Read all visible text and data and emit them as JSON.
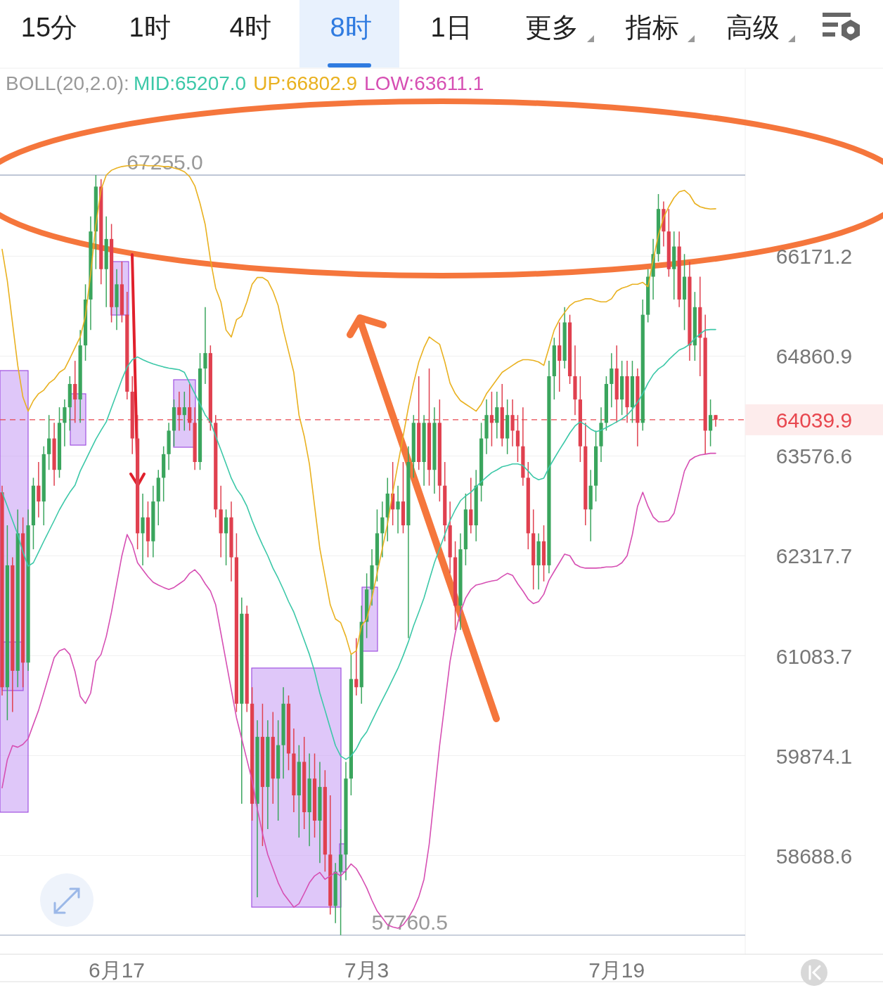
{
  "chart_data": {
    "type": "candlestick",
    "categories": [
      null,
      null,
      null,
      null,
      null,
      null,
      null,
      null,
      null,
      null,
      null,
      null,
      null,
      null,
      null,
      null,
      null,
      null,
      null,
      null,
      null,
      null,
      "6月17",
      null,
      null,
      null,
      null,
      null,
      null,
      null,
      null,
      null,
      null,
      null,
      null,
      null,
      null,
      null,
      null,
      null,
      null,
      null,
      null,
      null,
      null,
      null,
      null,
      null,
      null,
      null,
      null,
      null,
      null,
      null,
      null,
      null,
      null,
      null,
      null,
      null,
      null,
      null,
      null,
      null,
      null,
      null,
      null,
      null,
      null,
      null,
      "7月3",
      null,
      null,
      null,
      null,
      null,
      null,
      null,
      null,
      null,
      null,
      null,
      null,
      null,
      null,
      null,
      null,
      null,
      null,
      null,
      null,
      null,
      null,
      null,
      null,
      null,
      null,
      null,
      null,
      null,
      null,
      null,
      null,
      null,
      null,
      null,
      null,
      null,
      null,
      null,
      null,
      null,
      null,
      null,
      null,
      null,
      null,
      null,
      "7月19",
      null,
      null,
      null,
      null,
      null,
      null,
      null,
      null,
      null,
      null,
      null,
      null,
      null,
      null,
      null,
      null,
      null,
      null,
      null
    ],
    "ohlc": [
      [
        63116,
        63200,
        60600,
        60700
      ],
      [
        60700,
        62700,
        60300,
        62200
      ],
      [
        62200,
        62300,
        60400,
        60900
      ],
      [
        60900,
        62900,
        60700,
        62600
      ],
      [
        62600,
        62800,
        60700,
        61000
      ],
      [
        61000,
        62900,
        60900,
        62700
      ],
      [
        62700,
        63300,
        62400,
        63200
      ],
      [
        63200,
        63500,
        62800,
        63000
      ],
      [
        63000,
        63700,
        62700,
        63600
      ],
      [
        63600,
        64100,
        63400,
        63800
      ],
      [
        63800,
        64000,
        63200,
        63400
      ],
      [
        63400,
        64200,
        63300,
        64000
      ],
      [
        64000,
        64300,
        63700,
        64200
      ],
      [
        64200,
        64600,
        63900,
        64500
      ],
      [
        64500,
        64800,
        64000,
        64300
      ],
      [
        64300,
        65200,
        64000,
        65000
      ],
      [
        65000,
        65800,
        64800,
        65600
      ],
      [
        65600,
        66700,
        65200,
        66500
      ],
      [
        66500,
        67255,
        66000,
        67100
      ],
      [
        67100,
        67200,
        65800,
        66000
      ],
      [
        66000,
        66700,
        65500,
        66400
      ],
      [
        66400,
        66600,
        65300,
        65500
      ],
      [
        65500,
        66000,
        65200,
        65800
      ],
      [
        65800,
        66100,
        65300,
        65400
      ],
      [
        65400,
        65700,
        64300,
        64400
      ],
      [
        64400,
        64600,
        63600,
        63800
      ],
      [
        63800,
        64100,
        62400,
        62600
      ],
      [
        62600,
        63100,
        62200,
        62800
      ],
      [
        62800,
        63000,
        62300,
        62500
      ],
      [
        62500,
        63200,
        62300,
        63000
      ],
      [
        63000,
        63400,
        62700,
        63300
      ],
      [
        63300,
        63700,
        63000,
        63600
      ],
      [
        63600,
        64000,
        63400,
        63900
      ],
      [
        63900,
        64300,
        63700,
        64200
      ],
      [
        64200,
        64400,
        63900,
        64100
      ],
      [
        64100,
        64400,
        63900,
        64200
      ],
      [
        64200,
        64500,
        63900,
        64000
      ],
      [
        64000,
        64200,
        63400,
        63500
      ],
      [
        63500,
        64900,
        63400,
        64700
      ],
      [
        64700,
        65500,
        64500,
        64900
      ],
      [
        64900,
        65000,
        63900,
        64000
      ],
      [
        64000,
        64100,
        62800,
        62900
      ],
      [
        62900,
        63200,
        62300,
        62600
      ],
      [
        62600,
        62900,
        62200,
        62800
      ],
      [
        62800,
        63000,
        62000,
        62300
      ],
      [
        62300,
        62600,
        60400,
        60500
      ],
      [
        60500,
        61800,
        59300,
        61600
      ],
      [
        61600,
        61700,
        60400,
        60500
      ],
      [
        60500,
        60700,
        59100,
        59300
      ],
      [
        59300,
        60300,
        58200,
        60100
      ],
      [
        60100,
        60500,
        58800,
        59500
      ],
      [
        59500,
        60300,
        59000,
        60100
      ],
      [
        60100,
        60400,
        59300,
        59600
      ],
      [
        59600,
        60300,
        59100,
        60000
      ],
      [
        60000,
        60700,
        59600,
        60500
      ],
      [
        60500,
        60600,
        59700,
        59900
      ],
      [
        59900,
        60200,
        59200,
        59400
      ],
      [
        59400,
        60000,
        58900,
        59800
      ],
      [
        59800,
        60100,
        59000,
        59200
      ],
      [
        59200,
        59900,
        58800,
        59600
      ],
      [
        59600,
        59900,
        58900,
        59100
      ],
      [
        59100,
        59800,
        58600,
        59500
      ],
      [
        59500,
        59700,
        58500,
        58700
      ],
      [
        58700,
        59400,
        58000,
        58100
      ],
      [
        58100,
        58600,
        57900,
        58500
      ],
      [
        58500,
        59000,
        57760.5,
        58700
      ],
      [
        58700,
        59800,
        58400,
        59600
      ],
      [
        59600,
        61100,
        59400,
        60800
      ],
      [
        60800,
        61300,
        60600,
        60700
      ],
      [
        60700,
        61700,
        60500,
        61500
      ],
      [
        61500,
        62100,
        61300,
        61900
      ],
      [
        61900,
        62400,
        61700,
        62200
      ],
      [
        62200,
        62900,
        62000,
        62600
      ],
      [
        62600,
        63000,
        62300,
        62800
      ],
      [
        62800,
        63300,
        62500,
        63100
      ],
      [
        63100,
        63500,
        62700,
        62900
      ],
      [
        62900,
        63200,
        62600,
        63000
      ],
      [
        63000,
        63500,
        62600,
        62700
      ],
      [
        62700,
        63700,
        61300,
        63500
      ],
      [
        63500,
        64100,
        63300,
        64000
      ],
      [
        64000,
        64600,
        63400,
        63500
      ],
      [
        63500,
        64100,
        63200,
        64000
      ],
      [
        64000,
        64700,
        63200,
        63400
      ],
      [
        63400,
        64200,
        63100,
        64000
      ],
      [
        64000,
        64300,
        63000,
        63200
      ],
      [
        63200,
        63500,
        62500,
        62700
      ],
      [
        62700,
        63000,
        62100,
        62300
      ],
      [
        62300,
        62500,
        61400,
        61700
      ],
      [
        61700,
        62600,
        61400,
        62400
      ],
      [
        62400,
        63100,
        62200,
        62900
      ],
      [
        62900,
        63300,
        62600,
        62700
      ],
      [
        62700,
        63400,
        62500,
        63200
      ],
      [
        63200,
        64000,
        63000,
        63800
      ],
      [
        63800,
        64300,
        63600,
        64100
      ],
      [
        64100,
        64400,
        63700,
        64000
      ],
      [
        64000,
        64400,
        63800,
        64200
      ],
      [
        64200,
        64500,
        63700,
        63800
      ],
      [
        63800,
        64300,
        63600,
        64100
      ],
      [
        64100,
        64300,
        63700,
        63900
      ],
      [
        63900,
        64100,
        63500,
        63700
      ],
      [
        63700,
        64200,
        63200,
        63300
      ],
      [
        63300,
        63500,
        62400,
        62600
      ],
      [
        62600,
        62900,
        61900,
        62200
      ],
      [
        62200,
        62600,
        61900,
        62500
      ],
      [
        62500,
        62700,
        62000,
        62200
      ],
      [
        62200,
        64800,
        62100,
        64600
      ],
      [
        64600,
        65100,
        64300,
        65000
      ],
      [
        65000,
        65300,
        64400,
        64800
      ],
      [
        64800,
        65500,
        64700,
        65300
      ],
      [
        65300,
        65400,
        64500,
        64600
      ],
      [
        64600,
        65000,
        64100,
        64300
      ],
      [
        64300,
        64600,
        63500,
        63700
      ],
      [
        63700,
        64000,
        62700,
        62900
      ],
      [
        62900,
        63400,
        62500,
        63200
      ],
      [
        63200,
        63900,
        63000,
        63700
      ],
      [
        63700,
        64200,
        63500,
        64000
      ],
      [
        64000,
        64600,
        63900,
        64500
      ],
      [
        64500,
        64900,
        64200,
        64700
      ],
      [
        64700,
        65000,
        64000,
        64300
      ],
      [
        64300,
        64800,
        64100,
        64600
      ],
      [
        64600,
        64800,
        64000,
        64200
      ],
      [
        64200,
        64800,
        64000,
        64600
      ],
      [
        64600,
        64700,
        63700,
        64000
      ],
      [
        64000,
        65600,
        63900,
        65400
      ],
      [
        65400,
        66000,
        65300,
        65900
      ],
      [
        65900,
        66400,
        65600,
        66200
      ],
      [
        66200,
        67000,
        66100,
        66800
      ],
      [
        66800,
        66900,
        66300,
        66500
      ],
      [
        66500,
        66800,
        65900,
        66000
      ],
      [
        66000,
        66500,
        65600,
        66300
      ],
      [
        66300,
        66500,
        65500,
        65600
      ],
      [
        65600,
        66200,
        65200,
        65900
      ],
      [
        65900,
        66100,
        64800,
        65000
      ],
      [
        65000,
        65700,
        64800,
        65500
      ],
      [
        65500,
        65900,
        64600,
        65100
      ],
      [
        65100,
        65400,
        63600,
        63900
      ],
      [
        63900,
        64300,
        63700,
        64100
      ],
      [
        64100,
        64100,
        63950,
        64039.9
      ]
    ],
    "series": [
      {
        "type": "line",
        "name": "MID:65207.0",
        "color": "#3cc8a8",
        "values": [
          63116,
          62940,
          62760,
          62585,
          62365,
          62190,
          62232,
          62365,
          62500,
          62630,
          62760,
          62895,
          63010,
          63116,
          63205,
          63385,
          63520,
          63655,
          63790,
          63905,
          64013,
          64195,
          64375,
          64560,
          64720,
          64815,
          64850,
          64815,
          64785,
          64760,
          64740,
          64720,
          64705,
          64695,
          64685,
          64650,
          64510,
          64375,
          64240,
          64100,
          64013,
          63830,
          63655,
          63475,
          63295,
          63160,
          63070,
          62940,
          62760,
          62600,
          62455,
          62320,
          62165,
          62040,
          61900,
          61750,
          61620,
          61450,
          61275,
          61100,
          60890,
          60630,
          60420,
          60205,
          59995,
          59870,
          59830,
          59870,
          59955,
          60078,
          60160,
          60290,
          60420,
          60545,
          60670,
          60800,
          60930,
          61085,
          61255,
          61450,
          61620,
          61795,
          62015,
          62232,
          62410,
          62585,
          62760,
          62895,
          63010,
          63070,
          63116,
          63185,
          63250,
          63310,
          63365,
          63400,
          63440,
          63455,
          63475,
          63475,
          63455,
          63385,
          63310,
          63275,
          63295,
          63430,
          63545,
          63655,
          63760,
          63870,
          63960,
          64013,
          63975,
          63920,
          63885,
          63905,
          63940,
          63975,
          64013,
          64050,
          64100,
          64175,
          64265,
          64375,
          64510,
          64620,
          64695,
          64740,
          64815,
          64880,
          64940,
          64970,
          65015,
          65090,
          65150,
          65200,
          65207,
          65207.0
        ]
      },
      {
        "type": "line",
        "name": "UP:66802.9",
        "color": "#e9b120",
        "values": [
          66263,
          65845,
          65290,
          64740,
          64330,
          64150,
          64285,
          64375,
          64420,
          64510,
          64560,
          64650,
          64695,
          64830,
          64970,
          65110,
          65382,
          65940,
          66590,
          67060,
          67255,
          67320,
          67350,
          67370,
          67380,
          67380,
          67390,
          67390,
          67380,
          67380,
          67380,
          67370,
          67370,
          67350,
          67330,
          67300,
          67235,
          67110,
          66875,
          66590,
          66125,
          65750,
          65570,
          65200,
          65110,
          65335,
          65382,
          65570,
          65800,
          65890,
          65890,
          65845,
          65710,
          65520,
          65200,
          64923,
          64650,
          64100,
          63830,
          63475,
          62940,
          62410,
          62060,
          61710,
          61535,
          61490,
          61320,
          61100,
          61145,
          61450,
          61535,
          61795,
          62100,
          62410,
          62720,
          63116,
          63475,
          63830,
          64195,
          64510,
          64785,
          64970,
          65110,
          65060,
          65015,
          64785,
          64510,
          64375,
          64285,
          64240,
          64195,
          64150,
          64240,
          64375,
          64467,
          64560,
          64650,
          64695,
          64740,
          64785,
          64815,
          64815,
          64805,
          64785,
          64740,
          64970,
          65200,
          65335,
          65430,
          65520,
          65570,
          65585,
          65610,
          65610,
          65585,
          65570,
          65570,
          65610,
          65710,
          65750,
          65770,
          65800,
          65800,
          65825,
          65770,
          66125,
          66450,
          66685,
          66830,
          66950,
          67030,
          67050,
          66990,
          66875,
          66830,
          66810,
          66800,
          66802.9
        ]
      },
      {
        "type": "line",
        "name": "LOW:63611.1",
        "color": "#d64fb3",
        "values": [
          59490,
          59825,
          59995,
          59975,
          60010,
          60078,
          60250,
          60420,
          60630,
          60845,
          61060,
          61145,
          61170,
          61100,
          60890,
          60590,
          60503,
          60630,
          61015,
          61100,
          61320,
          61620,
          61970,
          62320,
          62585,
          62455,
          62232,
          62145,
          62060,
          61990,
          61955,
          61925,
          61900,
          61925,
          61970,
          62015,
          62100,
          62145,
          62075,
          61970,
          61880,
          61710,
          61362,
          61015,
          60670,
          60330,
          60078,
          59825,
          59575,
          59238,
          58945,
          58700,
          58535,
          58370,
          58245,
          58165,
          58085,
          58125,
          58245,
          58370,
          58450,
          58490,
          58410,
          58450,
          58490,
          58450,
          58510,
          58590,
          58535,
          58430,
          58310,
          58165,
          58040,
          57960,
          57880,
          57855,
          57840,
          57880,
          57960,
          58065,
          58205,
          58410,
          58822,
          59405,
          59995,
          60503,
          61015,
          61362,
          61620,
          61795,
          61900,
          61955,
          61970,
          61990,
          62005,
          62015,
          62060,
          62100,
          62075,
          61970,
          61880,
          61780,
          61725,
          61750,
          61840,
          62015,
          62125,
          62232,
          62340,
          62320,
          62215,
          62180,
          62165,
          62165,
          62165,
          62170,
          62180,
          62180,
          62190,
          62232,
          62320,
          62585,
          62940,
          63116,
          62940,
          62805,
          62745,
          62745,
          62760,
          62850,
          63116,
          63385,
          63520,
          63565,
          63590,
          63600,
          63611,
          63611.1
        ]
      }
    ],
    "legend_title": "BOLL(20,2.0):",
    "legend": "top",
    "ylim": [
      57540,
      68700
    ],
    "log": "y",
    "yticks": [
      58688.6,
      59874.1,
      61083.7,
      62317.7,
      63576.6,
      64860.9,
      66171.2
    ],
    "grid": "y",
    "ref_lines": [
      {
        "axis": "y",
        "value": 67255,
        "label": "67255.0",
        "color": "#aab4c8"
      },
      {
        "axis": "y",
        "value": 57760.5,
        "label": "57760.5",
        "color": "#aab4c8"
      },
      {
        "axis": "y",
        "value": 64039.9,
        "label": "64039.9",
        "color": "#e8474f",
        "line_style": "dashed"
      }
    ],
    "annotations": [
      "15分",
      "1时",
      "4时",
      "8时",
      "1日",
      "更多",
      "指标",
      "高级"
    ]
  }
}
